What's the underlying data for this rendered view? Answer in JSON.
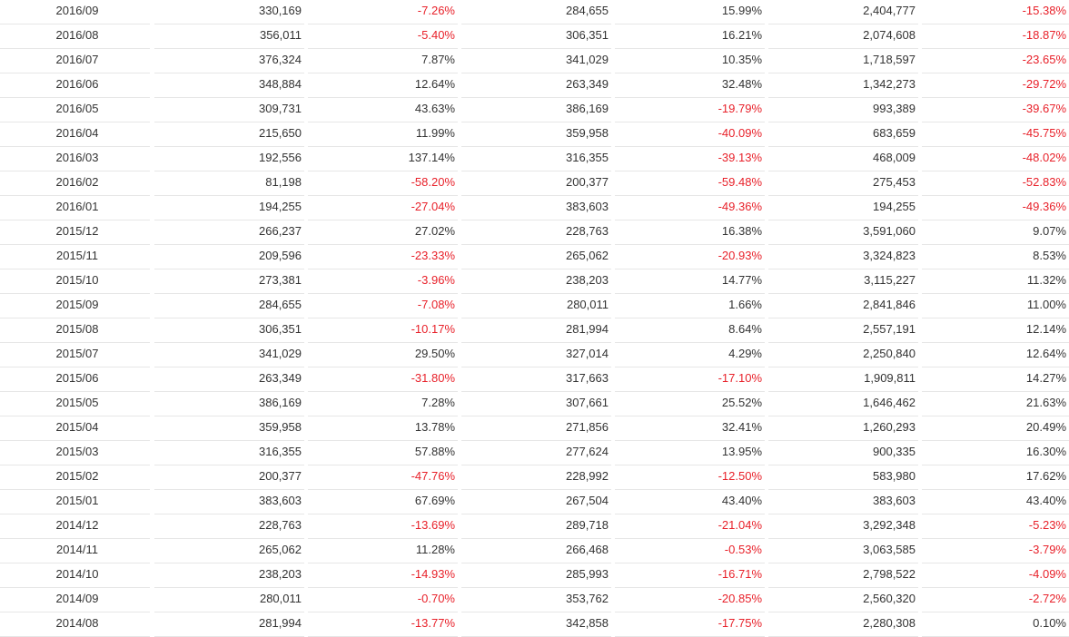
{
  "rows": [
    {
      "month": "2016/09",
      "c1": "330,169",
      "c2": "-7.26%",
      "c3": "284,655",
      "c4": "15.99%",
      "c5": "2,404,777",
      "c6": "-15.38%"
    },
    {
      "month": "2016/08",
      "c1": "356,011",
      "c2": "-5.40%",
      "c3": "306,351",
      "c4": "16.21%",
      "c5": "2,074,608",
      "c6": "-18.87%"
    },
    {
      "month": "2016/07",
      "c1": "376,324",
      "c2": "7.87%",
      "c3": "341,029",
      "c4": "10.35%",
      "c5": "1,718,597",
      "c6": "-23.65%"
    },
    {
      "month": "2016/06",
      "c1": "348,884",
      "c2": "12.64%",
      "c3": "263,349",
      "c4": "32.48%",
      "c5": "1,342,273",
      "c6": "-29.72%"
    },
    {
      "month": "2016/05",
      "c1": "309,731",
      "c2": "43.63%",
      "c3": "386,169",
      "c4": "-19.79%",
      "c5": "993,389",
      "c6": "-39.67%"
    },
    {
      "month": "2016/04",
      "c1": "215,650",
      "c2": "11.99%",
      "c3": "359,958",
      "c4": "-40.09%",
      "c5": "683,659",
      "c6": "-45.75%"
    },
    {
      "month": "2016/03",
      "c1": "192,556",
      "c2": "137.14%",
      "c3": "316,355",
      "c4": "-39.13%",
      "c5": "468,009",
      "c6": "-48.02%"
    },
    {
      "month": "2016/02",
      "c1": "81,198",
      "c2": "-58.20%",
      "c3": "200,377",
      "c4": "-59.48%",
      "c5": "275,453",
      "c6": "-52.83%"
    },
    {
      "month": "2016/01",
      "c1": "194,255",
      "c2": "-27.04%",
      "c3": "383,603",
      "c4": "-49.36%",
      "c5": "194,255",
      "c6": "-49.36%"
    },
    {
      "month": "2015/12",
      "c1": "266,237",
      "c2": "27.02%",
      "c3": "228,763",
      "c4": "16.38%",
      "c5": "3,591,060",
      "c6": "9.07%"
    },
    {
      "month": "2015/11",
      "c1": "209,596",
      "c2": "-23.33%",
      "c3": "265,062",
      "c4": "-20.93%",
      "c5": "3,324,823",
      "c6": "8.53%"
    },
    {
      "month": "2015/10",
      "c1": "273,381",
      "c2": "-3.96%",
      "c3": "238,203",
      "c4": "14.77%",
      "c5": "3,115,227",
      "c6": "11.32%"
    },
    {
      "month": "2015/09",
      "c1": "284,655",
      "c2": "-7.08%",
      "c3": "280,011",
      "c4": "1.66%",
      "c5": "2,841,846",
      "c6": "11.00%"
    },
    {
      "month": "2015/08",
      "c1": "306,351",
      "c2": "-10.17%",
      "c3": "281,994",
      "c4": "8.64%",
      "c5": "2,557,191",
      "c6": "12.14%"
    },
    {
      "month": "2015/07",
      "c1": "341,029",
      "c2": "29.50%",
      "c3": "327,014",
      "c4": "4.29%",
      "c5": "2,250,840",
      "c6": "12.64%"
    },
    {
      "month": "2015/06",
      "c1": "263,349",
      "c2": "-31.80%",
      "c3": "317,663",
      "c4": "-17.10%",
      "c5": "1,909,811",
      "c6": "14.27%"
    },
    {
      "month": "2015/05",
      "c1": "386,169",
      "c2": "7.28%",
      "c3": "307,661",
      "c4": "25.52%",
      "c5": "1,646,462",
      "c6": "21.63%"
    },
    {
      "month": "2015/04",
      "c1": "359,958",
      "c2": "13.78%",
      "c3": "271,856",
      "c4": "32.41%",
      "c5": "1,260,293",
      "c6": "20.49%"
    },
    {
      "month": "2015/03",
      "c1": "316,355",
      "c2": "57.88%",
      "c3": "277,624",
      "c4": "13.95%",
      "c5": "900,335",
      "c6": "16.30%"
    },
    {
      "month": "2015/02",
      "c1": "200,377",
      "c2": "-47.76%",
      "c3": "228,992",
      "c4": "-12.50%",
      "c5": "583,980",
      "c6": "17.62%"
    },
    {
      "month": "2015/01",
      "c1": "383,603",
      "c2": "67.69%",
      "c3": "267,504",
      "c4": "43.40%",
      "c5": "383,603",
      "c6": "43.40%"
    },
    {
      "month": "2014/12",
      "c1": "228,763",
      "c2": "-13.69%",
      "c3": "289,718",
      "c4": "-21.04%",
      "c5": "3,292,348",
      "c6": "-5.23%"
    },
    {
      "month": "2014/11",
      "c1": "265,062",
      "c2": "11.28%",
      "c3": "266,468",
      "c4": "-0.53%",
      "c5": "3,063,585",
      "c6": "-3.79%"
    },
    {
      "month": "2014/10",
      "c1": "238,203",
      "c2": "-14.93%",
      "c3": "285,993",
      "c4": "-16.71%",
      "c5": "2,798,522",
      "c6": "-4.09%"
    },
    {
      "month": "2014/09",
      "c1": "280,011",
      "c2": "-0.70%",
      "c3": "353,762",
      "c4": "-20.85%",
      "c5": "2,560,320",
      "c6": "-2.72%"
    },
    {
      "month": "2014/08",
      "c1": "281,994",
      "c2": "-13.77%",
      "c3": "342,858",
      "c4": "-17.75%",
      "c5": "2,280,308",
      "c6": "0.10%"
    }
  ],
  "colors": {
    "negative": "#e8212a",
    "text": "#333333",
    "border": "#e6e6e6"
  }
}
